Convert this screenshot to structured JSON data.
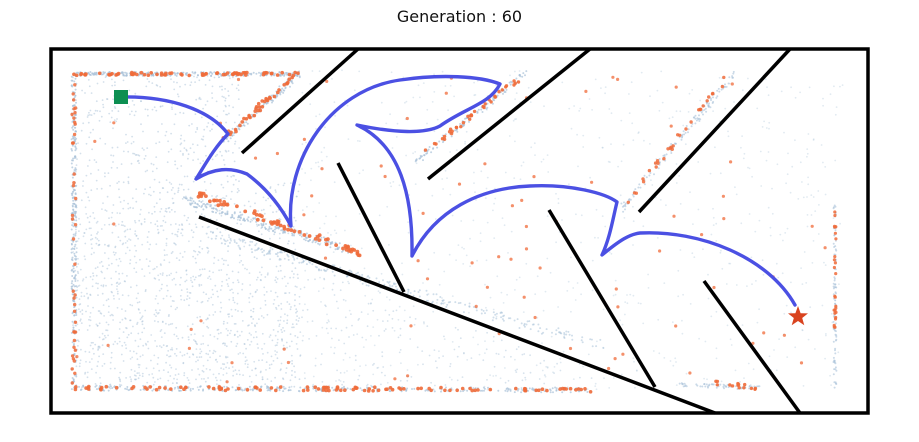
{
  "title": "Generation : 60",
  "colors": {
    "border": "#000000",
    "walls": "#000000",
    "path": "#4b50e3",
    "explored": "#a9c2d8",
    "elite": "#f06b3a",
    "start": "#0d8f52",
    "goal": "#d9431f"
  },
  "icons": {
    "start": "green-square-start-marker",
    "goal": "red-star-goal-marker"
  }
}
